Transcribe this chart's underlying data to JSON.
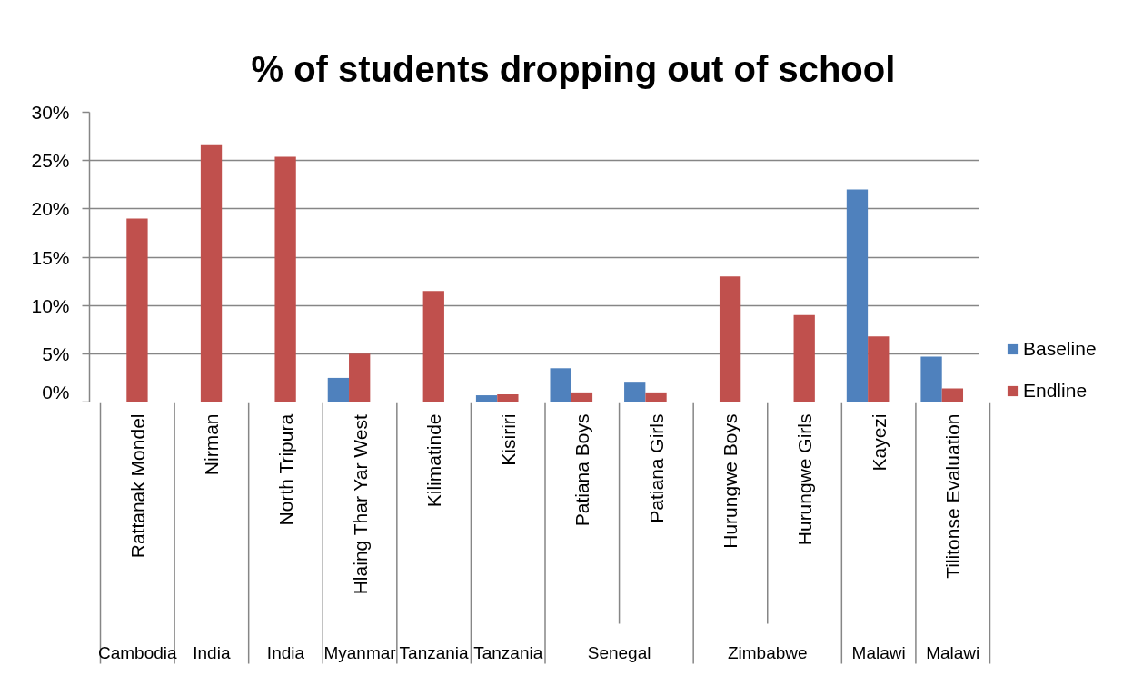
{
  "chart_data": {
    "type": "bar",
    "title": "% of students dropping out of school",
    "categories": [
      "Rattanak Mondel",
      "Nirman",
      "North Tripura",
      "Hlaing Thar Yar West",
      "Kilimatinde",
      "Kisiriri",
      "Patiana Boys",
      "Patiana Girls",
      "Hurungwe Boys",
      "Hurungwe Girls",
      "Kayezi",
      "Tilitonse Evaluation"
    ],
    "series": [
      {
        "name": "Baseline",
        "color": "#4f81bd",
        "values": [
          null,
          null,
          null,
          2.5,
          null,
          0.7,
          3.5,
          2.1,
          null,
          null,
          22.0,
          4.7
        ]
      },
      {
        "name": "Endline",
        "color": "#c0504d",
        "values": [
          19.0,
          26.6,
          25.4,
          5.0,
          11.5,
          0.8,
          1.0,
          1.0,
          13.0,
          9.0,
          6.8,
          1.4
        ]
      }
    ],
    "ylim": [
      0,
      30
    ],
    "yticks": [
      {
        "value": 0,
        "label": "0%"
      },
      {
        "value": 5,
        "label": "5%"
      },
      {
        "value": 10,
        "label": "10%"
      },
      {
        "value": 15,
        "label": "15%"
      },
      {
        "value": 20,
        "label": "20%"
      },
      {
        "value": 25,
        "label": "25%"
      },
      {
        "value": 30,
        "label": "30%"
      }
    ],
    "grid": "y",
    "legend": "right",
    "annotations": [
      "Cambodia",
      "India",
      "India",
      "Myanmar",
      "Tanzania",
      "Tanzania",
      "Senegal",
      "Zimbabwe",
      "Malawi",
      "Malawi"
    ]
  }
}
